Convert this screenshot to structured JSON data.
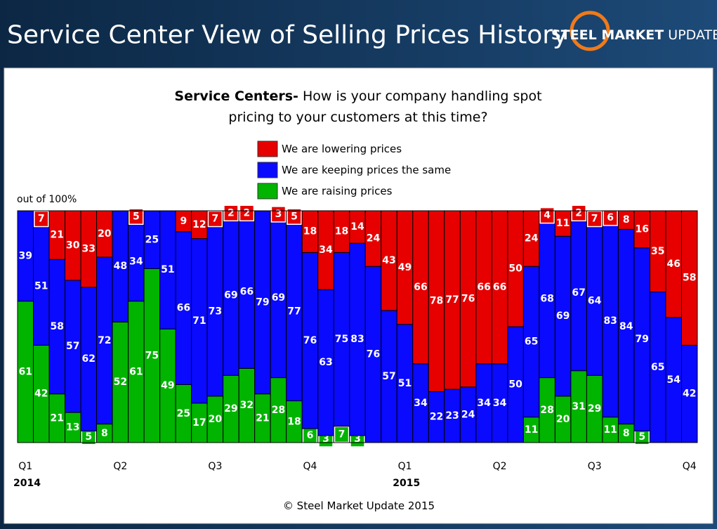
{
  "header": {
    "title": "Service Center View of Selling Prices History",
    "logo_bold": "STEEL MARKET",
    "logo_light": "UPDATE"
  },
  "chart_data": {
    "type": "stacked_bar",
    "title_bold": "Service Centers-",
    "title_line1": "How is your company handling spot",
    "title_line2": "pricing to your customers at this time?",
    "ylabel": "out of 100%",
    "footer": "© Steel Market Update 2015",
    "ylim": [
      0,
      100
    ],
    "categories": [
      "Q1",
      null,
      null,
      null,
      null,
      null,
      "Q2",
      null,
      null,
      null,
      null,
      null,
      "Q3",
      null,
      null,
      null,
      null,
      null,
      "Q4",
      null,
      null,
      null,
      null,
      null,
      "Q1",
      null,
      null,
      null,
      null,
      null,
      "Q2",
      null,
      null,
      null,
      null,
      null,
      "Q3",
      null,
      null,
      null,
      null,
      null,
      "Q4"
    ],
    "category_years": [
      "2014",
      null,
      null,
      null,
      null,
      null,
      null,
      null,
      null,
      null,
      null,
      null,
      null,
      null,
      null,
      null,
      null,
      null,
      null,
      null,
      null,
      null,
      null,
      null,
      "2015",
      null,
      null,
      null,
      null,
      null,
      null,
      null,
      null,
      null,
      null,
      null,
      null,
      null,
      null,
      null,
      null,
      null,
      null
    ],
    "series": [
      {
        "name": "We are raising prices",
        "color": "#00b400",
        "values": [
          61,
          42,
          21,
          13,
          5,
          8,
          52,
          61,
          75,
          49,
          25,
          17,
          20,
          29,
          32,
          21,
          28,
          18,
          6,
          3,
          7,
          3,
          0,
          0,
          0,
          0,
          0,
          0,
          0,
          0,
          0,
          0,
          11,
          28,
          20,
          31,
          29,
          11,
          8,
          5,
          0,
          0,
          0
        ]
      },
      {
        "name": "We are keeping prices the same",
        "color": "#0a0aff",
        "values": [
          39,
          51,
          58,
          57,
          62,
          72,
          48,
          34,
          25,
          51,
          66,
          71,
          73,
          69,
          66,
          79,
          69,
          77,
          76,
          63,
          75,
          83,
          76,
          57,
          51,
          34,
          22,
          23,
          24,
          34,
          34,
          50,
          65,
          68,
          69,
          67,
          64,
          83,
          84,
          79,
          65,
          54,
          42
        ]
      },
      {
        "name": "We are lowering prices",
        "color": "#e60000",
        "values": [
          0,
          7,
          21,
          30,
          33,
          20,
          0,
          5,
          0,
          0,
          9,
          12,
          7,
          2,
          2,
          0,
          3,
          5,
          18,
          34,
          18,
          14,
          24,
          43,
          49,
          66,
          78,
          77,
          76,
          66,
          66,
          50,
          24,
          4,
          11,
          2,
          7,
          6,
          8,
          16,
          35,
          46,
          58
        ]
      }
    ]
  }
}
